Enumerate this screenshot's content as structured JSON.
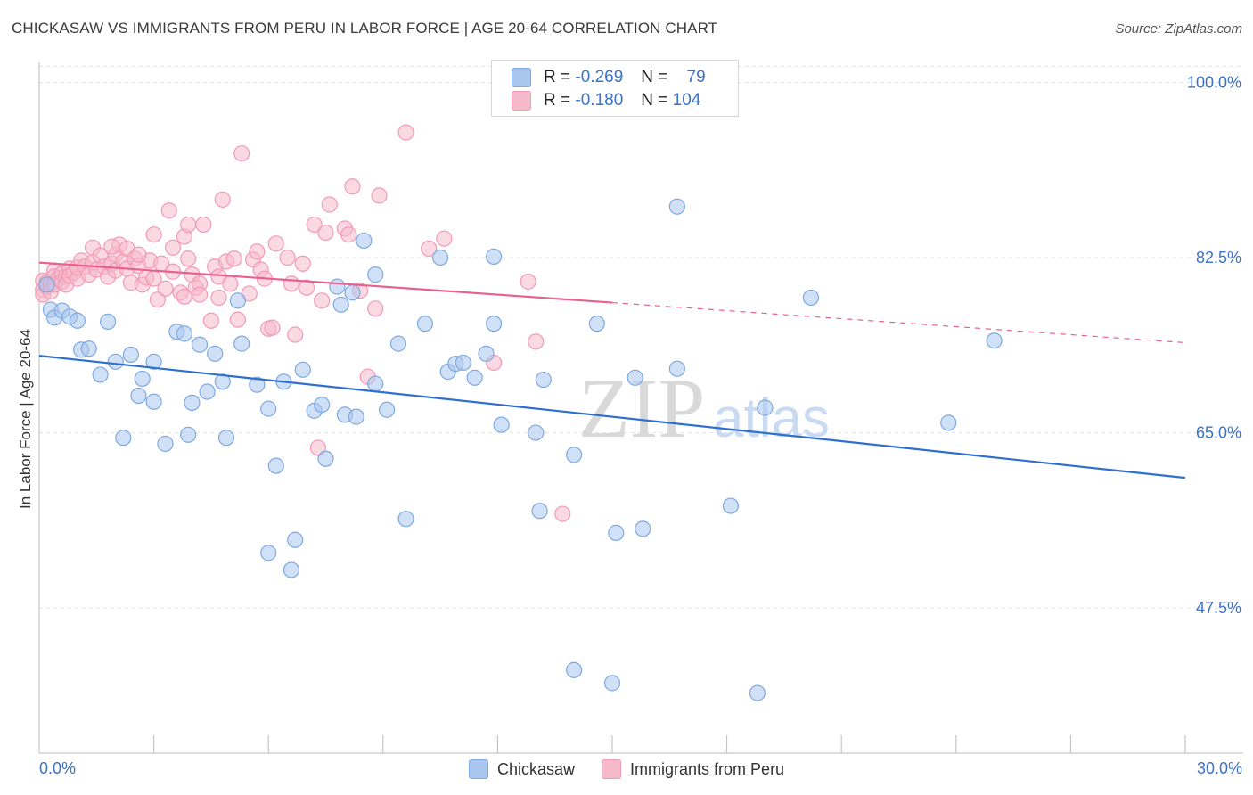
{
  "title": "CHICKASAW VS IMMIGRANTS FROM PERU IN LABOR FORCE | AGE 20-64 CORRELATION CHART",
  "source": "Source: ZipAtlas.com",
  "watermark": "ZIPatlas",
  "legend": {
    "r_label": "R =",
    "n_label": "N =",
    "rows": [
      {
        "r": "-0.269",
        "n": "79",
        "color": "#a9c6ee"
      },
      {
        "r": "-0.180",
        "n": "104",
        "color": "#f5b9cc"
      }
    ]
  },
  "bottom_legend": [
    "Chickasaw",
    "Immigrants from Peru"
  ],
  "x_tick_labels": {
    "left": "0.0%",
    "right": "30.0%"
  },
  "chart_data": {
    "type": "scatter",
    "title": "CHICKASAW VS IMMIGRANTS FROM PERU IN LABOR FORCE | AGE 20-64 CORRELATION CHART",
    "xlabel": "",
    "ylabel": "In Labor Force | Age 20-64",
    "xlim": [
      0,
      30
    ],
    "ylim": [
      33,
      102
    ],
    "y_ticks": [
      {
        "value": 100.0,
        "label": "100.0%"
      },
      {
        "value": 82.5,
        "label": "82.5%"
      },
      {
        "value": 65.0,
        "label": "65.0%"
      },
      {
        "value": 47.5,
        "label": "47.5%"
      }
    ],
    "grid": true,
    "legend_position": "top-center",
    "series": [
      {
        "name": "Chickasaw",
        "color": "#7ea9e1",
        "fill": "#a9c6ee",
        "line_color": "#2e6fd0",
        "r": -0.269,
        "n": 79,
        "trend": {
          "x0": 0,
          "y0": 72.7,
          "x1": 30,
          "y1": 60.5
        },
        "points": [
          [
            0.2,
            79.8
          ],
          [
            0.3,
            77.3
          ],
          [
            0.4,
            76.5
          ],
          [
            0.6,
            77.2
          ],
          [
            0.8,
            76.6
          ],
          [
            1.0,
            76.2
          ],
          [
            1.1,
            73.3
          ],
          [
            1.3,
            73.4
          ],
          [
            1.6,
            70.8
          ],
          [
            1.8,
            76.1
          ],
          [
            2.0,
            72.1
          ],
          [
            2.2,
            64.5
          ],
          [
            2.4,
            72.8
          ],
          [
            2.6,
            68.7
          ],
          [
            2.7,
            70.4
          ],
          [
            3.0,
            72.1
          ],
          [
            3.0,
            68.1
          ],
          [
            3.3,
            63.9
          ],
          [
            3.6,
            75.1
          ],
          [
            3.8,
            74.9
          ],
          [
            3.9,
            64.8
          ],
          [
            4.0,
            68.0
          ],
          [
            4.2,
            73.8
          ],
          [
            4.4,
            69.1
          ],
          [
            4.6,
            72.9
          ],
          [
            4.8,
            70.1
          ],
          [
            4.9,
            64.5
          ],
          [
            5.2,
            78.2
          ],
          [
            5.3,
            73.9
          ],
          [
            5.7,
            69.8
          ],
          [
            6.0,
            67.4
          ],
          [
            6.2,
            61.7
          ],
          [
            6.4,
            70.1
          ],
          [
            6.0,
            53.0
          ],
          [
            6.7,
            54.3
          ],
          [
            6.6,
            51.3
          ],
          [
            6.9,
            71.3
          ],
          [
            7.2,
            67.2
          ],
          [
            7.4,
            67.8
          ],
          [
            7.5,
            62.4
          ],
          [
            7.8,
            79.6
          ],
          [
            7.9,
            77.8
          ],
          [
            8.0,
            66.8
          ],
          [
            8.3,
            66.6
          ],
          [
            8.2,
            79.0
          ],
          [
            8.5,
            84.2
          ],
          [
            8.8,
            69.9
          ],
          [
            8.8,
            80.8
          ],
          [
            9.1,
            67.3
          ],
          [
            9.4,
            73.9
          ],
          [
            9.6,
            56.4
          ],
          [
            10.1,
            75.9
          ],
          [
            10.5,
            82.5
          ],
          [
            10.7,
            71.1
          ],
          [
            10.9,
            71.9
          ],
          [
            11.1,
            72.0
          ],
          [
            11.4,
            70.5
          ],
          [
            11.7,
            72.9
          ],
          [
            11.9,
            82.6
          ],
          [
            11.9,
            75.9
          ],
          [
            12.1,
            65.8
          ],
          [
            13.0,
            65.0
          ],
          [
            13.1,
            57.2
          ],
          [
            13.2,
            70.3
          ],
          [
            14.0,
            62.8
          ],
          [
            14.0,
            41.3
          ],
          [
            14.6,
            75.9
          ],
          [
            15.0,
            40.0
          ],
          [
            15.1,
            55.0
          ],
          [
            15.6,
            70.5
          ],
          [
            15.8,
            55.4
          ],
          [
            16.7,
            71.4
          ],
          [
            16.7,
            87.6
          ],
          [
            18.1,
            57.7
          ],
          [
            18.8,
            39.0
          ],
          [
            19.0,
            67.5
          ],
          [
            20.2,
            78.5
          ],
          [
            23.8,
            66.0
          ],
          [
            25.0,
            74.2
          ]
        ]
      },
      {
        "name": "Immigrants from Peru",
        "color": "#f29ab6",
        "fill": "#f5b9cc",
        "line_color": "#e8608f",
        "r": -0.18,
        "n": 104,
        "trend": {
          "x0": 0,
          "y0": 82.0,
          "x1": 15,
          "y1": 78.0
        },
        "trend_dashed": {
          "x0": 15,
          "y0": 78.0,
          "x1": 30,
          "y1": 74.0
        },
        "points": [
          [
            0.1,
            80.2
          ],
          [
            0.1,
            79.3
          ],
          [
            0.1,
            78.8
          ],
          [
            0.2,
            80.0
          ],
          [
            0.2,
            79.6
          ],
          [
            0.3,
            79.9
          ],
          [
            0.3,
            79.1
          ],
          [
            0.4,
            81.2
          ],
          [
            0.4,
            80.6
          ],
          [
            0.4,
            79.8
          ],
          [
            0.5,
            80.4
          ],
          [
            0.6,
            80.9
          ],
          [
            0.6,
            80.1
          ],
          [
            0.7,
            80.6
          ],
          [
            0.7,
            79.8
          ],
          [
            0.8,
            81.4
          ],
          [
            0.8,
            80.7
          ],
          [
            0.9,
            81.0
          ],
          [
            1.0,
            80.4
          ],
          [
            1.0,
            81.5
          ],
          [
            1.1,
            82.2
          ],
          [
            1.2,
            81.6
          ],
          [
            1.3,
            80.8
          ],
          [
            1.4,
            82.0
          ],
          [
            1.4,
            83.5
          ],
          [
            1.5,
            81.3
          ],
          [
            1.6,
            82.7
          ],
          [
            1.7,
            81.6
          ],
          [
            1.8,
            80.6
          ],
          [
            1.9,
            81.9
          ],
          [
            2.0,
            82.8
          ],
          [
            2.0,
            81.2
          ],
          [
            2.1,
            83.8
          ],
          [
            2.2,
            82.1
          ],
          [
            2.3,
            83.4
          ],
          [
            2.3,
            81.4
          ],
          [
            2.4,
            80.0
          ],
          [
            2.5,
            82.4
          ],
          [
            2.6,
            81.7
          ],
          [
            2.7,
            79.8
          ],
          [
            2.8,
            80.5
          ],
          [
            2.9,
            82.2
          ],
          [
            3.0,
            80.4
          ],
          [
            3.0,
            84.8
          ],
          [
            3.1,
            78.3
          ],
          [
            3.2,
            81.9
          ],
          [
            3.3,
            79.4
          ],
          [
            3.4,
            87.2
          ],
          [
            3.5,
            81.1
          ],
          [
            3.5,
            83.5
          ],
          [
            3.7,
            79.0
          ],
          [
            3.8,
            84.6
          ],
          [
            3.8,
            78.6
          ],
          [
            3.9,
            82.4
          ],
          [
            3.9,
            85.8
          ],
          [
            4.0,
            80.8
          ],
          [
            4.1,
            79.5
          ],
          [
            4.2,
            79.9
          ],
          [
            4.3,
            85.8
          ],
          [
            4.5,
            76.2
          ],
          [
            4.6,
            81.6
          ],
          [
            4.7,
            80.6
          ],
          [
            4.7,
            78.5
          ],
          [
            4.8,
            88.3
          ],
          [
            4.9,
            82.1
          ],
          [
            5.0,
            79.9
          ],
          [
            5.1,
            82.4
          ],
          [
            5.2,
            76.3
          ],
          [
            5.3,
            92.9
          ],
          [
            5.5,
            78.9
          ],
          [
            5.6,
            82.3
          ],
          [
            5.7,
            83.1
          ],
          [
            5.8,
            81.3
          ],
          [
            5.9,
            80.4
          ],
          [
            6.0,
            75.4
          ],
          [
            6.1,
            75.5
          ],
          [
            6.2,
            83.9
          ],
          [
            6.5,
            82.5
          ],
          [
            6.6,
            79.9
          ],
          [
            6.7,
            74.8
          ],
          [
            6.9,
            81.9
          ],
          [
            7.0,
            79.5
          ],
          [
            7.2,
            85.8
          ],
          [
            7.3,
            63.5
          ],
          [
            7.4,
            78.2
          ],
          [
            7.5,
            85.0
          ],
          [
            7.6,
            87.8
          ],
          [
            8.0,
            85.4
          ],
          [
            8.1,
            84.8
          ],
          [
            8.2,
            89.6
          ],
          [
            8.4,
            79.2
          ],
          [
            8.6,
            70.6
          ],
          [
            8.8,
            77.4
          ],
          [
            8.9,
            88.7
          ],
          [
            9.6,
            95.0
          ],
          [
            10.2,
            83.4
          ],
          [
            10.6,
            84.4
          ],
          [
            11.9,
            72.0
          ],
          [
            12.8,
            80.1
          ],
          [
            13.0,
            74.1
          ],
          [
            13.7,
            56.9
          ],
          [
            4.2,
            78.8
          ],
          [
            2.6,
            82.8
          ],
          [
            1.9,
            83.6
          ]
        ]
      }
    ]
  }
}
